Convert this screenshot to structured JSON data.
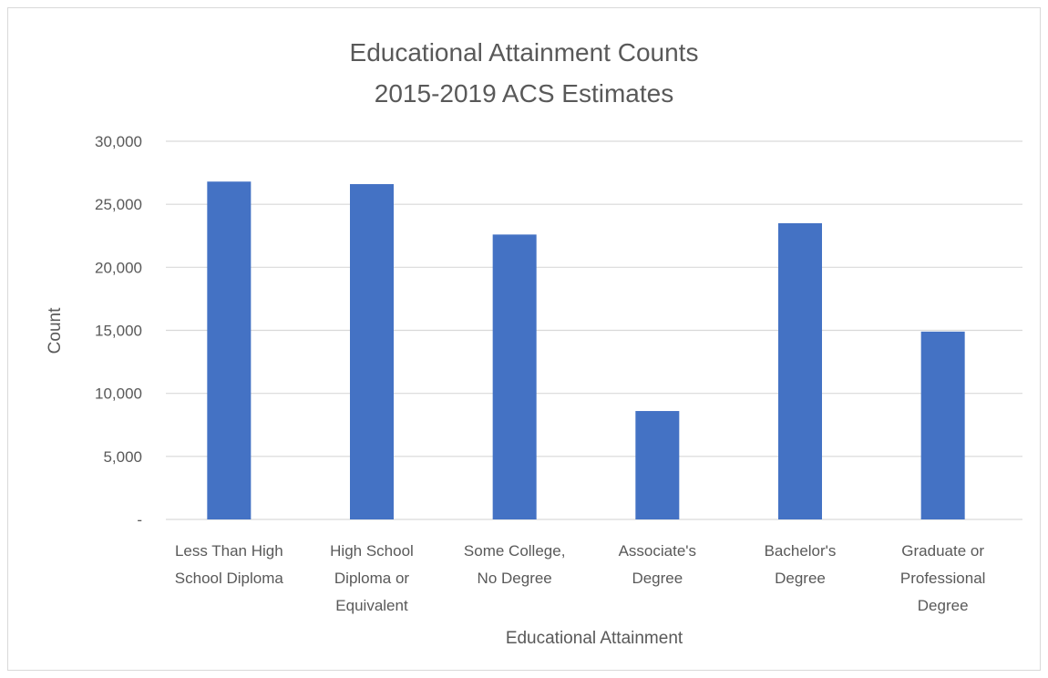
{
  "chart_data": {
    "type": "bar",
    "title": "Educational Attainment Counts",
    "subtitle": "2015-2019 ACS Estimates",
    "xlabel": "Educational Attainment",
    "ylabel": "Count",
    "categories": [
      [
        "Less Than High",
        "School Diploma"
      ],
      [
        "High School",
        "Diploma or",
        "Equivalent"
      ],
      [
        "Some College,",
        "No Degree"
      ],
      [
        "Associate's",
        "Degree"
      ],
      [
        "Bachelor's",
        "Degree"
      ],
      [
        "Graduate or",
        "Professional",
        "Degree"
      ]
    ],
    "values": [
      26800,
      26600,
      22600,
      8600,
      23500,
      14900
    ],
    "ylim": [
      0,
      30000
    ],
    "yticks": [
      0,
      5000,
      10000,
      15000,
      20000,
      25000,
      30000
    ],
    "ytick_labels": [
      "-",
      "5,000",
      "10,000",
      "15,000",
      "20,000",
      "25,000",
      "30,000"
    ],
    "grid": true,
    "bar_color": "#4472C4",
    "grid_color": "#D9D9D9"
  }
}
